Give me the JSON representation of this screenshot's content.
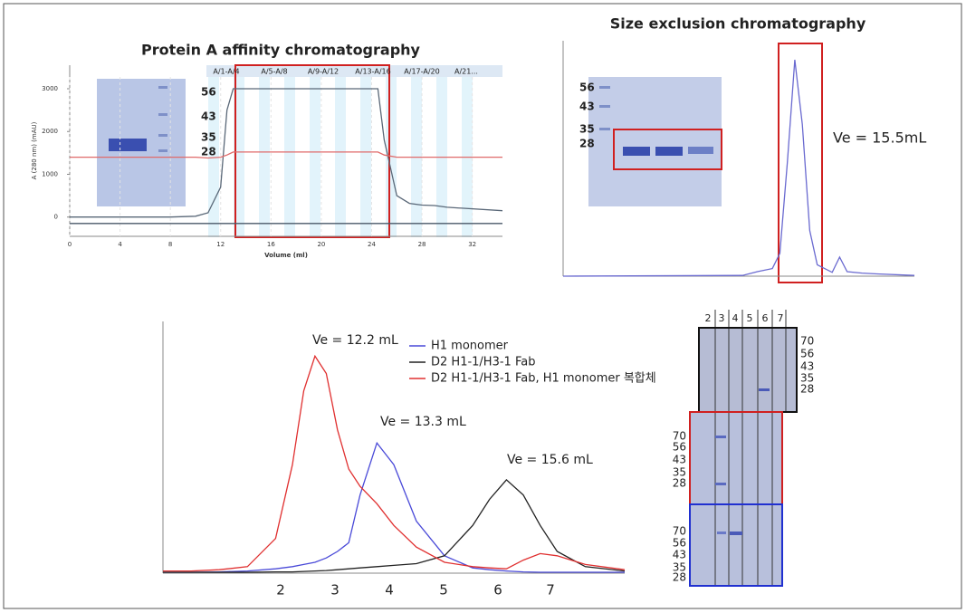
{
  "chart_data": [
    {
      "type": "line",
      "title": "Protein A affinity chromatography",
      "xlabel": "Volume (ml)",
      "ylabel": "A (280 nm) (mAU)",
      "xlim": [
        0,
        34.4
      ],
      "xticks": [
        0,
        4,
        8,
        12,
        16,
        20,
        24,
        28,
        32
      ],
      "ylim": [
        -450,
        3550
      ],
      "yticks": [
        0,
        1000,
        2000,
        3000
      ],
      "fractions": [
        "A/1-A/4",
        "A/5-A/8",
        "A/9-A/12",
        "A/13-A/16",
        "A/17-A/20",
        "A/21..."
      ],
      "x": [
        0,
        4,
        8,
        10,
        11,
        12,
        12.5,
        13,
        20,
        24.5,
        25,
        26,
        27,
        28,
        29,
        30,
        34.4
      ],
      "series": [
        {
          "color": "#5a6878",
          "values": [
            0,
            0,
            0,
            20,
            100,
            700,
            2500,
            3000,
            3000,
            3000,
            1800,
            500,
            320,
            280,
            270,
            230,
            150
          ]
        },
        {
          "color": "#e06a6a",
          "values": [
            1400,
            1400,
            1400,
            1400,
            1380,
            1400,
            1450,
            1520,
            1520,
            1520,
            1450,
            1400,
            1400,
            1400,
            1400,
            1400,
            1400
          ]
        },
        {
          "color": "#4a5868",
          "values": [
            -150,
            -150,
            -150,
            -150,
            -150,
            -150,
            -150,
            -150,
            -150,
            -150,
            -150,
            -150,
            -150,
            -150,
            -150,
            -150,
            -150
          ]
        }
      ]
    },
    {
      "type": "line",
      "title": "Size exclusion chromatography",
      "annotations": [
        "Ve = 15.5mL"
      ],
      "xlim": [
        0,
        23.5
      ],
      "ylim": [
        0,
        3100
      ],
      "x": [
        0,
        12,
        13,
        14,
        14.5,
        15,
        15.5,
        16,
        16.5,
        17,
        18,
        18.5,
        19,
        20,
        21,
        23.5
      ],
      "series": [
        {
          "color": "#6a6ad0",
          "values": [
            0,
            10,
            60,
            100,
            300,
            1500,
            2850,
            2000,
            600,
            150,
            50,
            250,
            60,
            40,
            30,
            10
          ]
        }
      ]
    },
    {
      "type": "line",
      "legend": "top",
      "annotations": [
        "Ve = 12.2 mL",
        "Ve = 13.3 mL",
        "Ve = 15.6 mL"
      ],
      "fractions": [
        "2",
        "3",
        "4",
        "5",
        "6",
        "7"
      ],
      "xlim": [
        9.5,
        17.7
      ],
      "ylim": [
        0,
        580
      ],
      "x": [
        9.5,
        10,
        10.5,
        11,
        11.5,
        11.8,
        12,
        12.2,
        12.4,
        12.6,
        12.8,
        13,
        13.3,
        13.6,
        14,
        14.5,
        15,
        15.3,
        15.6,
        15.9,
        16.2,
        16.5,
        17,
        17.7
      ],
      "series": [
        {
          "name": "H1 monomer",
          "color": "#4a4ad8",
          "values": [
            2,
            2,
            3,
            5,
            10,
            15,
            20,
            25,
            35,
            50,
            70,
            180,
            300,
            250,
            120,
            40,
            12,
            8,
            5,
            3,
            2,
            2,
            2,
            2
          ]
        },
        {
          "name": "D2 H1-1/H3-1 Fab",
          "color": "#222222",
          "values": [
            2,
            2,
            2,
            2,
            3,
            3,
            4,
            5,
            6,
            8,
            10,
            12,
            15,
            18,
            22,
            40,
            110,
            170,
            215,
            180,
            110,
            50,
            15,
            5
          ]
        },
        {
          "name": "D2 H1-1/H3-1 Fab, H1 monomer 복합체",
          "color": "#e03030",
          "values": [
            5,
            5,
            8,
            15,
            80,
            250,
            420,
            500,
            460,
            330,
            240,
            200,
            160,
            110,
            60,
            25,
            15,
            12,
            10,
            30,
            45,
            40,
            20,
            8
          ]
        }
      ]
    }
  ],
  "gels": {
    "protein_a": {
      "markers": [
        "56",
        "43",
        "35",
        "28"
      ]
    },
    "sec": {
      "markers": [
        "56",
        "43",
        "35",
        "28"
      ]
    },
    "sds": {
      "lanes": [
        "2",
        "3",
        "4",
        "5",
        "6",
        "7"
      ],
      "markers": [
        [
          "70",
          "56",
          "43",
          "35",
          "28"
        ],
        [
          "70",
          "56",
          "43",
          "35",
          "28"
        ],
        [
          "70",
          "56",
          "43",
          "35",
          "28"
        ]
      ]
    }
  }
}
